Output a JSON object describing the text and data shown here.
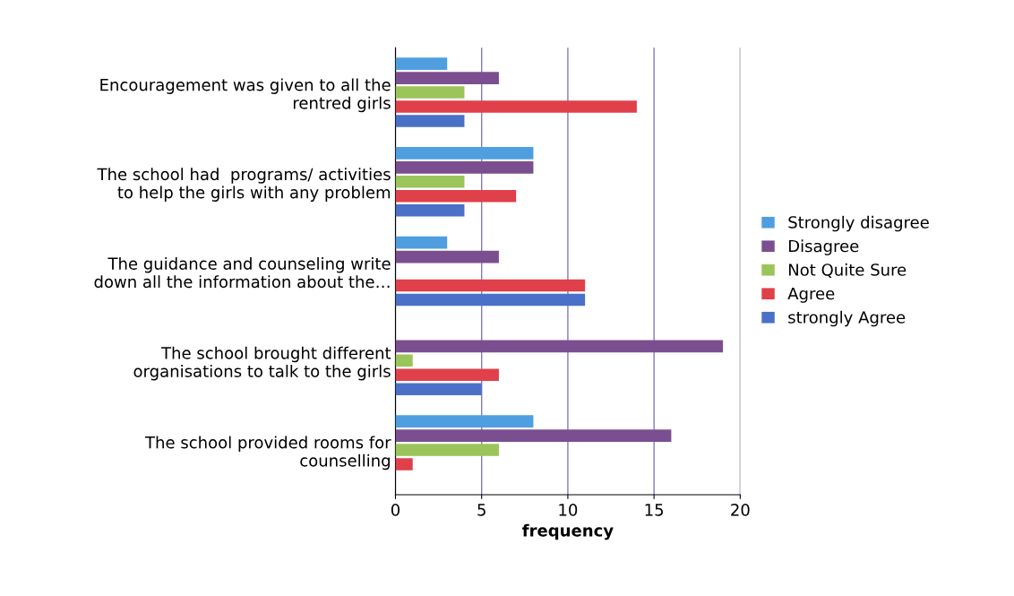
{
  "chart_data": {
    "type": "bar",
    "orientation": "horizontal",
    "xlabel": "frequency",
    "categories": [
      "Encouragement was given to all the\nrentred girls",
      "The school had  programs/ activities\nto help the girls with any problem",
      "The guidance and counseling write\ndown all the information about the…",
      "The school brought different\norganisations to talk to the girls",
      "The school provided rooms for\ncounselling"
    ],
    "series": [
      {
        "name": "Strongly disagree",
        "color": "#4f9fe0",
        "values": [
          3,
          8,
          3,
          0,
          8
        ]
      },
      {
        "name": "Disagree",
        "color": "#7b4f8f",
        "values": [
          6,
          8,
          6,
          19,
          16
        ]
      },
      {
        "name": "Not Quite Sure",
        "color": "#9bc45a",
        "values": [
          4,
          4,
          0,
          1,
          6
        ]
      },
      {
        "name": "Agree",
        "color": "#e0404a",
        "values": [
          14,
          7,
          11,
          6,
          1
        ]
      },
      {
        "name": "strongly Agree",
        "color": "#4a70c8",
        "values": [
          4,
          4,
          11,
          5,
          0
        ]
      }
    ],
    "xlim": [
      0,
      20
    ],
    "xticks": [
      0,
      5,
      10,
      15,
      20
    ],
    "grid": "x",
    "legend": "right"
  }
}
